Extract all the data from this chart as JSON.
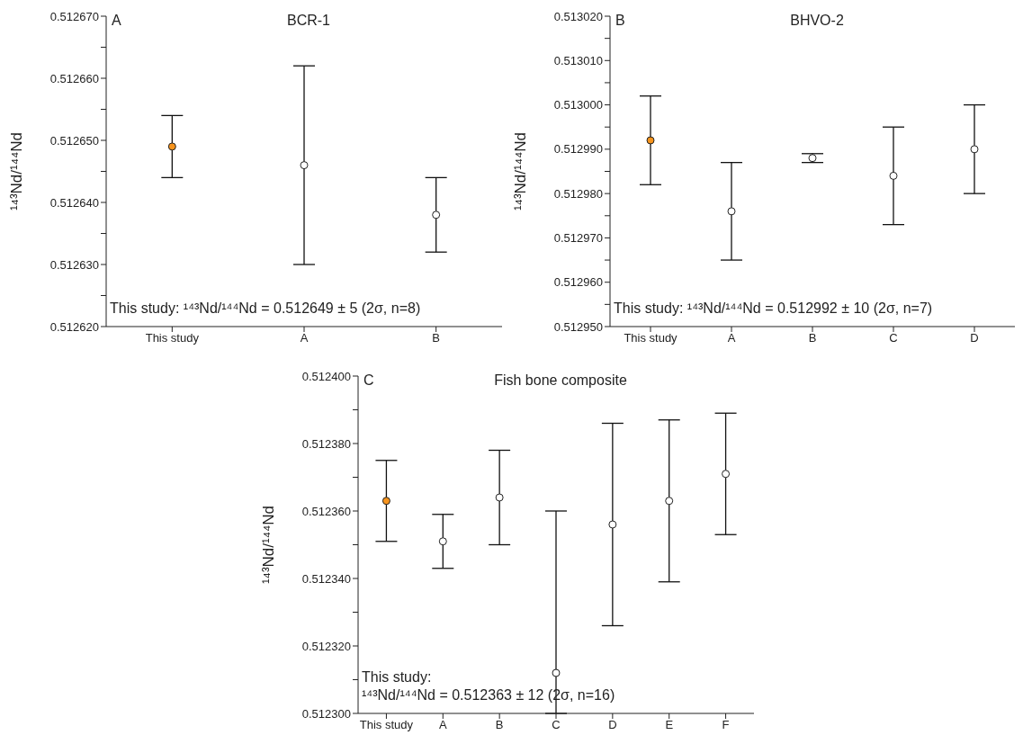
{
  "chart_data": [
    {
      "type": "scatter",
      "title": "BCR-1",
      "ylabel": "¹⁴³Nd/¹⁴⁴Nd",
      "categories": [
        "This study",
        "A",
        "B"
      ],
      "marker": "circle",
      "grid": false,
      "legend": false,
      "series": [
        {
          "values": [
            0.512649,
            0.512646,
            0.512638
          ],
          "colors": [
            "#f7941d",
            "#ffffff",
            "#ffffff"
          ],
          "errors": [
            [
              0.512644,
              0.512654
            ],
            [
              0.51263,
              0.512662
            ],
            [
              0.512632,
              0.512644
            ]
          ]
        }
      ],
      "ylim": [
        0.51262,
        0.51267
      ],
      "yticks": [
        {
          "value": 0.51262,
          "label": "0.512620"
        },
        {
          "value": 0.512625,
          "label": null
        },
        {
          "value": 0.51263,
          "label": "0.512630"
        },
        {
          "value": 0.512635,
          "label": null
        },
        {
          "value": 0.51264,
          "label": "0.512640"
        },
        {
          "value": 0.512645,
          "label": null
        },
        {
          "value": 0.51265,
          "label": "0.512650"
        },
        {
          "value": 0.512655,
          "label": null
        },
        {
          "value": 0.51266,
          "label": "0.512660"
        },
        {
          "value": 0.512665,
          "label": null
        },
        {
          "value": 0.51267,
          "label": "0.512670"
        }
      ],
      "annotations": [
        "A",
        "This study: ¹⁴³Nd/¹⁴⁴Nd = 0.512649 ± 5 (2σ, n=8)"
      ]
    },
    {
      "type": "scatter",
      "title": "BHVO-2",
      "ylabel": "¹⁴³Nd/¹⁴⁴Nd",
      "categories": [
        "This study",
        "A",
        "B",
        "C",
        "D"
      ],
      "marker": "circle",
      "grid": false,
      "legend": false,
      "series": [
        {
          "values": [
            0.512992,
            0.512976,
            0.512988,
            0.512984,
            0.51299
          ],
          "colors": [
            "#f7941d",
            "#ffffff",
            "#ffffff",
            "#ffffff",
            "#ffffff"
          ],
          "errors": [
            [
              0.512982,
              0.513002
            ],
            [
              0.512965,
              0.512987
            ],
            [
              0.512987,
              0.512989
            ],
            [
              0.512973,
              0.512995
            ],
            [
              0.51298,
              0.513
            ]
          ]
        }
      ],
      "ylim": [
        0.51295,
        0.51302
      ],
      "yticks": [
        {
          "value": 0.51295,
          "label": "0.512950"
        },
        {
          "value": 0.512955,
          "label": null
        },
        {
          "value": 0.51296,
          "label": "0.512960"
        },
        {
          "value": 0.512965,
          "label": null
        },
        {
          "value": 0.51297,
          "label": "0.512970"
        },
        {
          "value": 0.512975,
          "label": null
        },
        {
          "value": 0.51298,
          "label": "0.512980"
        },
        {
          "value": 0.512985,
          "label": null
        },
        {
          "value": 0.51299,
          "label": "0.512990"
        },
        {
          "value": 0.512995,
          "label": null
        },
        {
          "value": 0.513,
          "label": "0.513000"
        },
        {
          "value": 0.513005,
          "label": null
        },
        {
          "value": 0.51301,
          "label": "0.513010"
        },
        {
          "value": 0.513015,
          "label": null
        },
        {
          "value": 0.51302,
          "label": "0.513020"
        }
      ],
      "annotations": [
        "B",
        "This study: ¹⁴³Nd/¹⁴⁴Nd = 0.512992 ± 10 (2σ, n=7)"
      ]
    },
    {
      "type": "scatter",
      "title": "Fish bone composite",
      "ylabel": "¹⁴³Nd/¹⁴⁴Nd",
      "categories": [
        "This study",
        "A",
        "B",
        "C",
        "D",
        "E",
        "F"
      ],
      "marker": "circle",
      "grid": false,
      "legend": false,
      "series": [
        {
          "values": [
            0.512363,
            0.512351,
            0.512364,
            0.512312,
            0.512356,
            0.512363,
            0.512371
          ],
          "colors": [
            "#f7941d",
            "#ffffff",
            "#ffffff",
            "#ffffff",
            "#ffffff",
            "#ffffff",
            "#ffffff"
          ],
          "errors": [
            [
              0.512351,
              0.512375
            ],
            [
              0.512343,
              0.512359
            ],
            [
              0.51235,
              0.512378
            ],
            [
              0.5123,
              0.51236
            ],
            [
              0.512326,
              0.512386
            ],
            [
              0.512339,
              0.512387
            ],
            [
              0.512353,
              0.512389
            ]
          ]
        }
      ],
      "ylim": [
        0.5123,
        0.5124
      ],
      "yticks": [
        {
          "value": 0.5123,
          "label": "0.512300"
        },
        {
          "value": 0.51231,
          "label": null
        },
        {
          "value": 0.51232,
          "label": "0.512320"
        },
        {
          "value": 0.51233,
          "label": null
        },
        {
          "value": 0.51234,
          "label": "0.512340"
        },
        {
          "value": 0.51235,
          "label": null
        },
        {
          "value": 0.51236,
          "label": "0.512360"
        },
        {
          "value": 0.51237,
          "label": null
        },
        {
          "value": 0.51238,
          "label": "0.512380"
        },
        {
          "value": 0.51239,
          "label": null
        },
        {
          "value": 0.5124,
          "label": "0.512400"
        }
      ],
      "annotations": [
        "C",
        "This study:",
        "¹⁴³Nd/¹⁴⁴Nd = 0.512363 ± 12 (2σ, n=16)"
      ]
    }
  ]
}
